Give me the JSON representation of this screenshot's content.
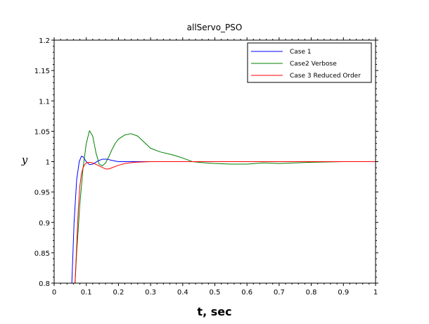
{
  "chart_data": {
    "type": "line",
    "title": "allServo_PSO",
    "xlabel": "t, sec",
    "ylabel": "y",
    "xlim": [
      0,
      1
    ],
    "ylim": [
      0.8,
      1.2
    ],
    "xticks": [
      "0",
      "0.1",
      "0.2",
      "0.3",
      "0.4",
      "0.5",
      "0.6",
      "0.7",
      "0.8",
      "0.9",
      "1"
    ],
    "yticks": [
      "0.8",
      "0.85",
      "0.9",
      "0.95",
      "1",
      "1.05",
      "1.1",
      "1.15",
      "1.2"
    ],
    "grid": false,
    "legend_position": "top-right",
    "series": [
      {
        "name": "Case 1",
        "color": "#0000ff",
        "x": [
          0.055,
          0.062,
          0.07,
          0.078,
          0.085,
          0.09,
          0.1,
          0.11,
          0.12,
          0.13,
          0.14,
          0.15,
          0.165,
          0.18,
          0.2,
          0.25,
          0.3,
          0.4,
          0.5,
          0.6,
          0.7,
          0.8,
          0.9,
          1.0
        ],
        "y": [
          0.8,
          0.9,
          0.97,
          1.0,
          1.009,
          1.008,
          1.0,
          0.995,
          0.996,
          0.999,
          1.002,
          1.004,
          1.004,
          1.002,
          1.0,
          1.0,
          1.0,
          1.0,
          1.0,
          1.0,
          1.0,
          1.0,
          1.0,
          1.0
        ]
      },
      {
        "name": "Case2 Verbose",
        "color": "#008000",
        "x": [
          0.065,
          0.07,
          0.08,
          0.09,
          0.1,
          0.11,
          0.12,
          0.13,
          0.14,
          0.15,
          0.16,
          0.17,
          0.18,
          0.19,
          0.2,
          0.22,
          0.24,
          0.26,
          0.28,
          0.3,
          0.33,
          0.37,
          0.4,
          0.43,
          0.47,
          0.5,
          0.55,
          0.6,
          0.65,
          0.7,
          0.75,
          0.8,
          0.9,
          1.0
        ],
        "y": [
          0.8,
          0.85,
          0.93,
          0.99,
          1.03,
          1.051,
          1.042,
          1.015,
          0.996,
          0.993,
          0.998,
          1.008,
          1.02,
          1.03,
          1.037,
          1.044,
          1.046,
          1.042,
          1.032,
          1.022,
          1.016,
          1.011,
          1.006,
          1.0,
          0.998,
          0.997,
          0.996,
          0.996,
          0.998,
          0.997,
          0.998,
          0.999,
          1.0,
          1.0
        ]
      },
      {
        "name": "Case 3 Reduced Order",
        "color": "#ff0000",
        "x": [
          0.065,
          0.07,
          0.075,
          0.08,
          0.085,
          0.09,
          0.095,
          0.1,
          0.11,
          0.12,
          0.14,
          0.16,
          0.17,
          0.18,
          0.2,
          0.22,
          0.25,
          0.3,
          0.4,
          0.5,
          0.6,
          0.7,
          0.8,
          0.9,
          1.0
        ],
        "y": [
          0.8,
          0.86,
          0.92,
          0.96,
          0.98,
          0.99,
          0.995,
          0.998,
          0.999,
          0.998,
          0.993,
          0.988,
          0.988,
          0.99,
          0.994,
          0.997,
          0.999,
          1.0,
          1.0,
          1.0,
          1.0,
          1.0,
          1.0,
          1.0,
          1.0
        ]
      }
    ]
  }
}
